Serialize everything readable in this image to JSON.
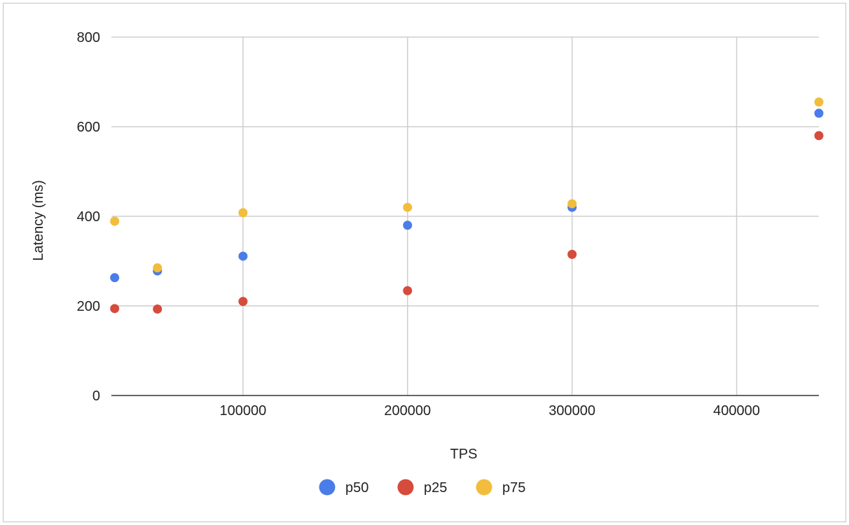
{
  "chart_data": {
    "type": "scatter",
    "title": "",
    "xlabel": "TPS",
    "ylabel": "Latency (ms)",
    "xlim": [
      20000,
      450000
    ],
    "ylim": [
      0,
      800
    ],
    "x_ticks": [
      100000,
      200000,
      300000,
      400000
    ],
    "y_ticks": [
      0,
      200,
      400,
      600,
      800
    ],
    "grid": true,
    "legend_position": "bottom",
    "series": [
      {
        "name": "p50",
        "color": "#4a7de8",
        "points": [
          [
            22000,
            263
          ],
          [
            48000,
            278
          ],
          [
            100000,
            311
          ],
          [
            200000,
            380
          ],
          [
            300000,
            420
          ],
          [
            450000,
            630
          ]
        ]
      },
      {
        "name": "p25",
        "color": "#d64b3c",
        "points": [
          [
            22000,
            194
          ],
          [
            48000,
            193
          ],
          [
            100000,
            210
          ],
          [
            200000,
            234
          ],
          [
            300000,
            315
          ],
          [
            450000,
            580
          ]
        ]
      },
      {
        "name": "p75",
        "color": "#f2bd3c",
        "points": [
          [
            22000,
            389
          ],
          [
            48000,
            285
          ],
          [
            100000,
            408
          ],
          [
            200000,
            420
          ],
          [
            300000,
            428
          ],
          [
            450000,
            655
          ]
        ]
      }
    ]
  }
}
